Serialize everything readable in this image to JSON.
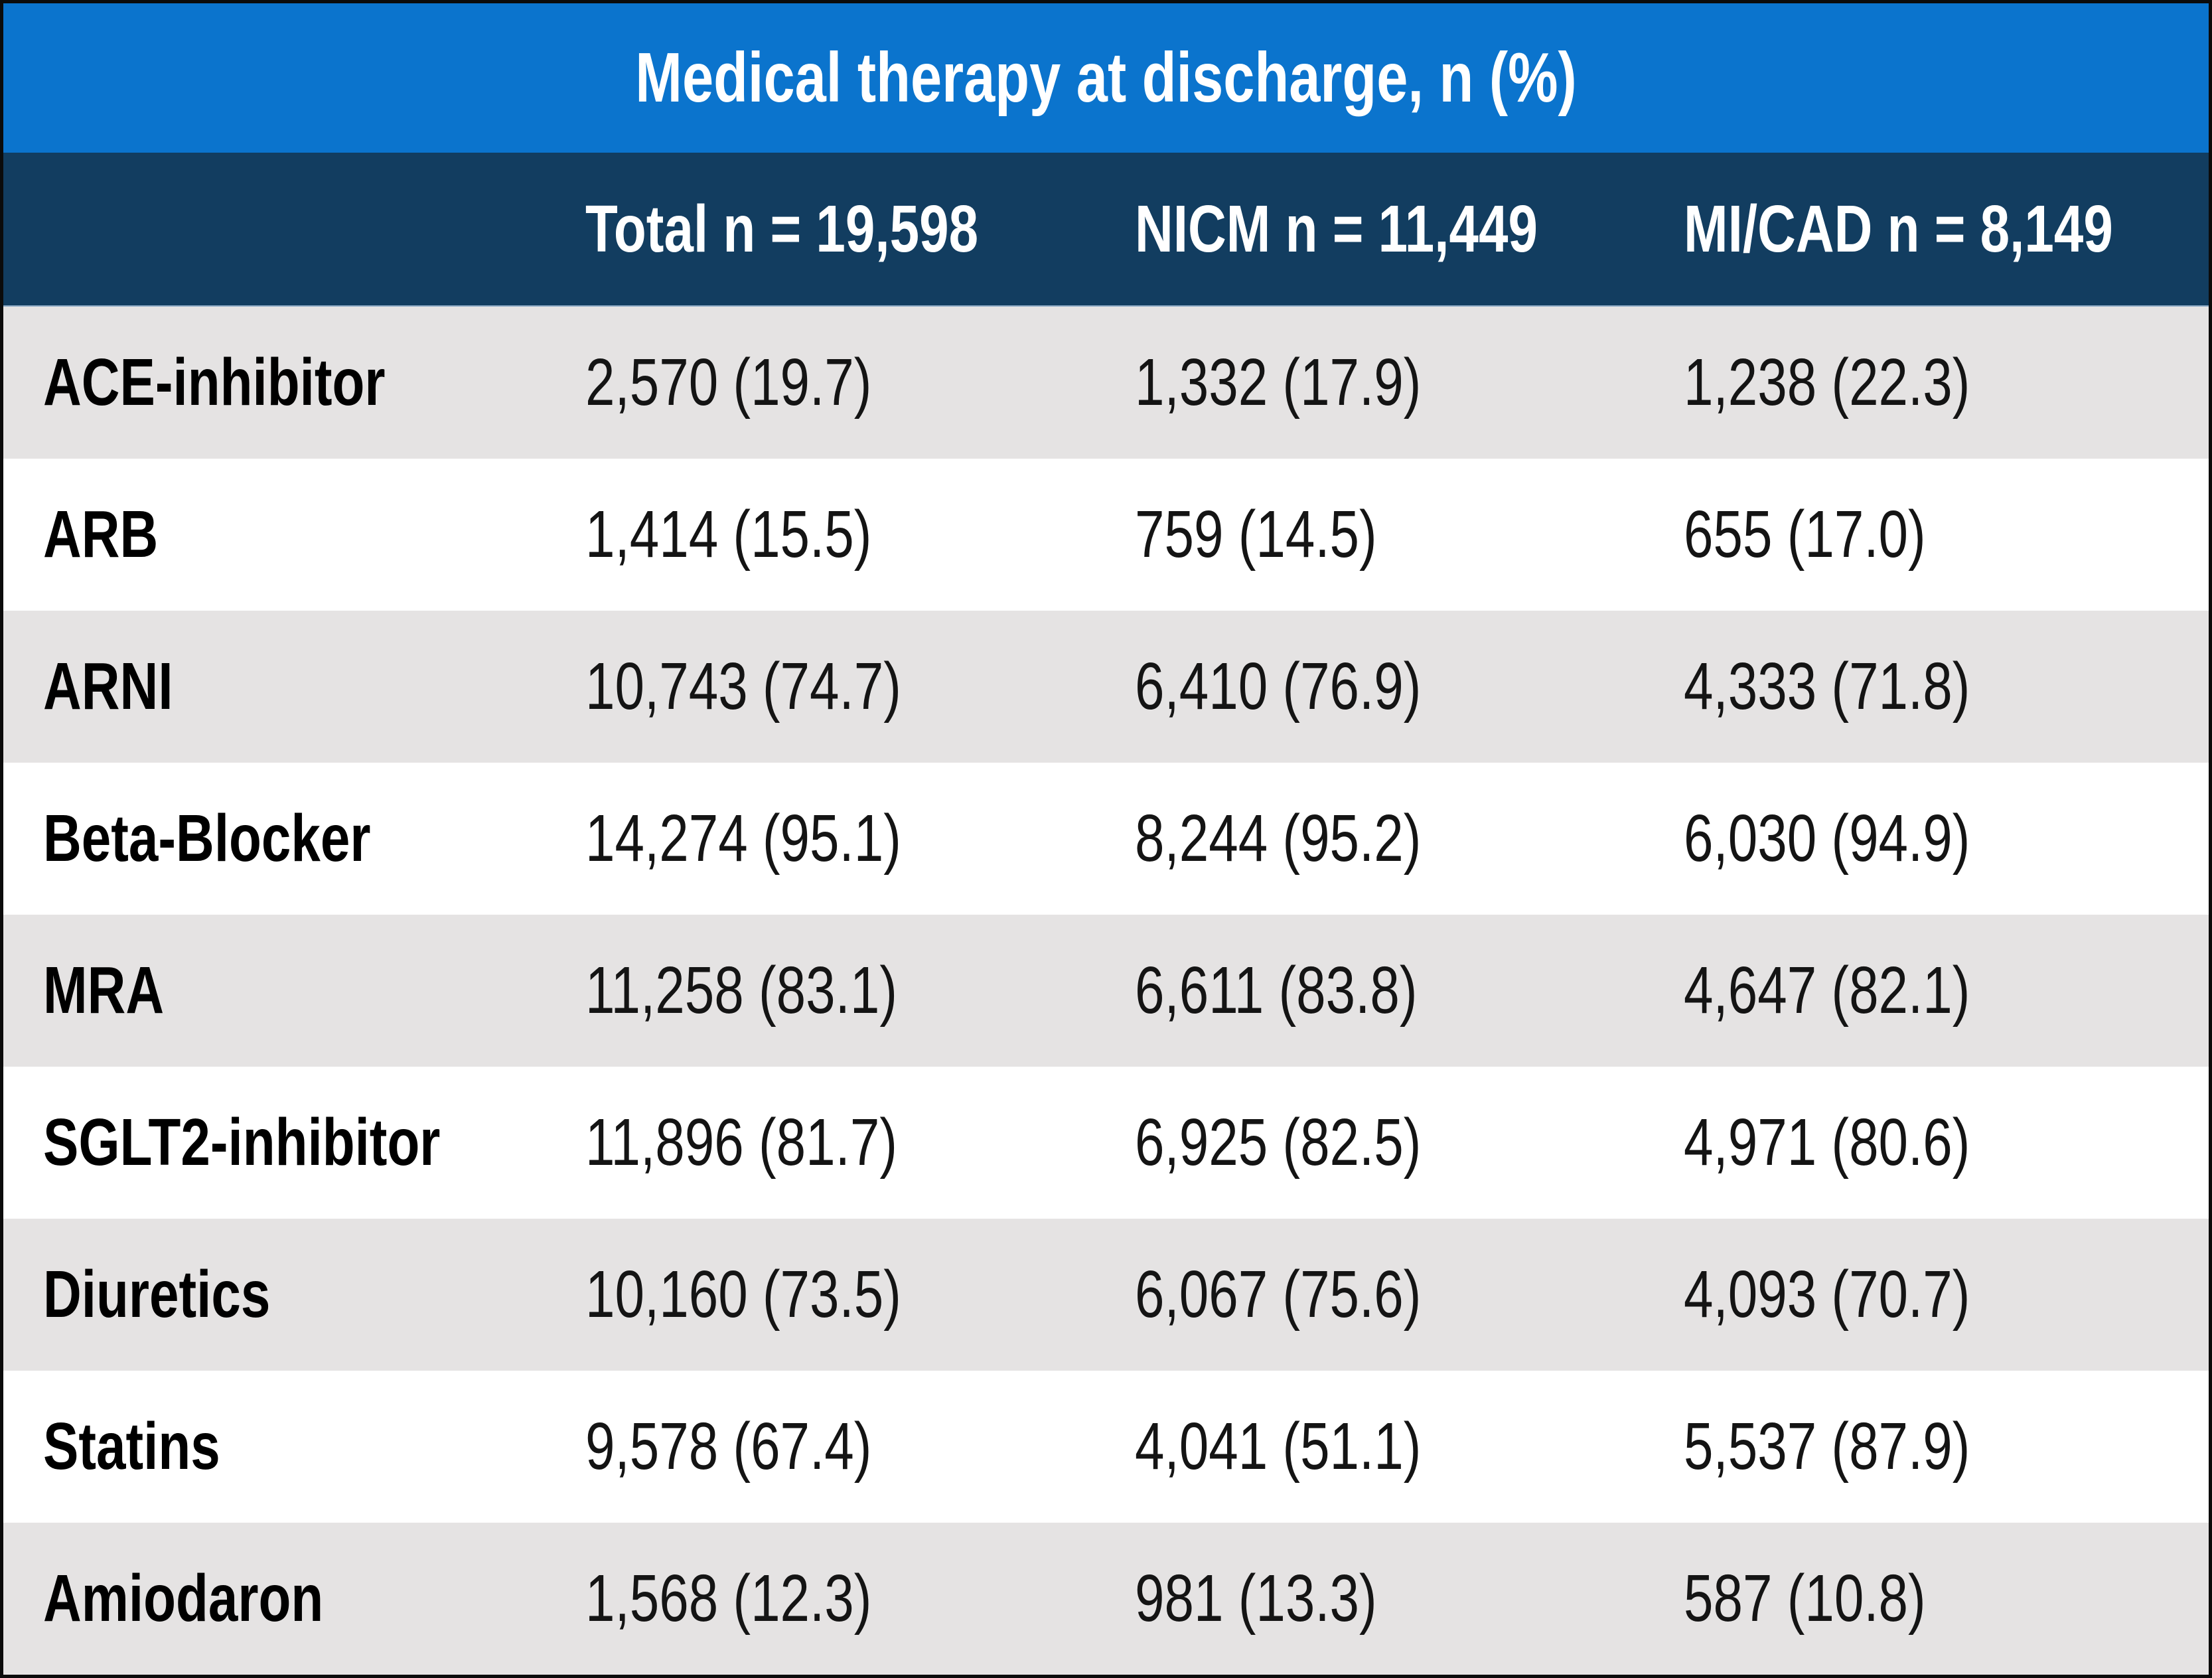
{
  "title": "Medical therapy at discharge, n (%)",
  "columns": [
    "Total n = 19,598",
    "NICM n = 11,449",
    "MI/CAD n = 8,149"
  ],
  "rows": [
    {
      "label": "ACE-inhibitor",
      "cells": [
        "2,570 (19.7)",
        "1,332 (17.9)",
        "1,238 (22.3)"
      ]
    },
    {
      "label": "ARB",
      "cells": [
        "1,414 (15.5)",
        "759 (14.5)",
        "655 (17.0)"
      ]
    },
    {
      "label": "ARNI",
      "cells": [
        "10,743 (74.7)",
        "6,410 (76.9)",
        "4,333 (71.8)"
      ]
    },
    {
      "label": "Beta-Blocker",
      "cells": [
        "14,274 (95.1)",
        "8,244 (95.2)",
        "6,030 (94.9)"
      ]
    },
    {
      "label": "MRA",
      "cells": [
        "11,258 (83.1)",
        "6,611 (83.8)",
        "4,647 (82.1)"
      ]
    },
    {
      "label": "SGLT2-inhibitor",
      "cells": [
        "11,896 (81.7)",
        "6,925 (82.5)",
        "4,971 (80.6)"
      ]
    },
    {
      "label": "Diuretics",
      "cells": [
        "10,160 (73.5)",
        "6,067 (75.6)",
        "4,093 (70.7)"
      ]
    },
    {
      "label": "Statins",
      "cells": [
        "9,578 (67.4)",
        "4,041 (51.1)",
        "5,537 (87.9)"
      ]
    },
    {
      "label": "Amiodaron",
      "cells": [
        "1,568 (12.3)",
        "981 (13.3)",
        "587 (10.8)"
      ]
    }
  ],
  "colors": {
    "title_bar": "#0b74cd",
    "header_row": "#123d60",
    "row_gray": "#e5e3e3",
    "row_white": "#ffffff",
    "text_dark": "#141414",
    "text_white": "#ffffff",
    "border": "#0b0b0b"
  },
  "chart_data": {
    "type": "table",
    "title": "Medical therapy at discharge, n (%)",
    "columns": [
      "",
      "Total n = 19,598",
      "NICM n = 11,449",
      "MI/CAD n = 8,149"
    ],
    "group_sizes": {
      "total": 19598,
      "nicm": 11449,
      "micad": 8149
    },
    "rows": [
      {
        "therapy": "ACE-inhibitor",
        "total_n": 2570,
        "total_pct": 19.7,
        "nicm_n": 1332,
        "nicm_pct": 17.9,
        "micad_n": 1238,
        "micad_pct": 22.3
      },
      {
        "therapy": "ARB",
        "total_n": 1414,
        "total_pct": 15.5,
        "nicm_n": 759,
        "nicm_pct": 14.5,
        "micad_n": 655,
        "micad_pct": 17.0
      },
      {
        "therapy": "ARNI",
        "total_n": 10743,
        "total_pct": 74.7,
        "nicm_n": 6410,
        "nicm_pct": 76.9,
        "micad_n": 4333,
        "micad_pct": 71.8
      },
      {
        "therapy": "Beta-Blocker",
        "total_n": 14274,
        "total_pct": 95.1,
        "nicm_n": 8244,
        "nicm_pct": 95.2,
        "micad_n": 6030,
        "micad_pct": 94.9
      },
      {
        "therapy": "MRA",
        "total_n": 11258,
        "total_pct": 83.1,
        "nicm_n": 6611,
        "nicm_pct": 83.8,
        "micad_n": 4647,
        "micad_pct": 82.1
      },
      {
        "therapy": "SGLT2-inhibitor",
        "total_n": 11896,
        "total_pct": 81.7,
        "nicm_n": 6925,
        "nicm_pct": 82.5,
        "micad_n": 4971,
        "micad_pct": 80.6
      },
      {
        "therapy": "Diuretics",
        "total_n": 10160,
        "total_pct": 73.5,
        "nicm_n": 6067,
        "nicm_pct": 75.6,
        "micad_n": 4093,
        "micad_pct": 70.7
      },
      {
        "therapy": "Statins",
        "total_n": 9578,
        "total_pct": 67.4,
        "nicm_n": 4041,
        "nicm_pct": 51.1,
        "micad_n": 5537,
        "micad_pct": 87.9
      },
      {
        "therapy": "Amiodaron",
        "total_n": 1568,
        "total_pct": 12.3,
        "nicm_n": 981,
        "nicm_pct": 13.3,
        "micad_n": 587,
        "micad_pct": 10.8
      }
    ]
  }
}
